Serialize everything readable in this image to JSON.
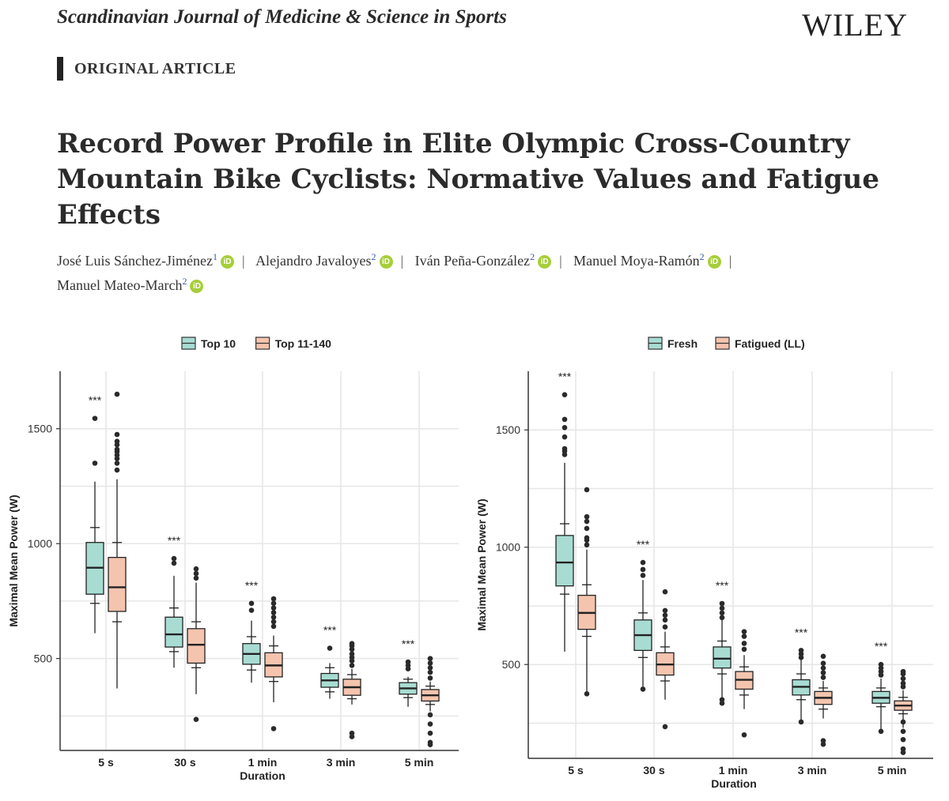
{
  "header": {
    "journal": "Scandinavian Journal of Medicine & Science in Sports",
    "publisher": "WILEY",
    "article_type": "ORIGINAL ARTICLE"
  },
  "title": "Record Power Profile in Elite Olympic Cross-Country Mountain Bike Cyclists: Normative Values and Fatigue Effects",
  "authors": [
    {
      "name": "José Luis Sánchez-Jiménez",
      "aff": "1"
    },
    {
      "name": "Alejandro Javaloyes",
      "aff": "2"
    },
    {
      "name": "Iván Peña-González",
      "aff": "2"
    },
    {
      "name": "Manuel Moya-Ramón",
      "aff": "2"
    },
    {
      "name": "Manuel Mateo-March",
      "aff": "2"
    }
  ],
  "orcid_label": "iD",
  "separator": "|",
  "colors": {
    "teal": "#a8dcd3",
    "salmon": "#f4c4ae",
    "grid": "#e6e6e6",
    "ink": "#222222"
  },
  "chart_data": [
    {
      "type": "box",
      "xlabel": "Duration",
      "ylabel": "Maximal Mean Power (W)",
      "categories": [
        "5 s",
        "30 s",
        "1 min",
        "3 min",
        "5 min"
      ],
      "yticks": [
        500,
        1000,
        1500
      ],
      "ylim": [
        100,
        1750
      ],
      "grid": true,
      "legend_position": "top",
      "annotations": [
        "***",
        "***",
        "***",
        "***",
        "***"
      ],
      "series": [
        {
          "name": "Top 10",
          "color": "#a8dcd3",
          "boxes": [
            {
              "whisker_low": 610,
              "q1": 780,
              "median": 895,
              "q3": 1005,
              "whisker_high": 1270,
              "ci": [
                740,
                1070
              ],
              "outliers": [
                1350,
                1545
              ]
            },
            {
              "whisker_low": 460,
              "q1": 550,
              "median": 605,
              "q3": 680,
              "whisker_high": 860,
              "ci": [
                530,
                720
              ],
              "outliers": [
                915,
                935
              ]
            },
            {
              "whisker_low": 395,
              "q1": 475,
              "median": 520,
              "q3": 565,
              "whisker_high": 665,
              "ci": [
                450,
                595
              ],
              "outliers": [
                710,
                740
              ]
            },
            {
              "whisker_low": 325,
              "q1": 375,
              "median": 405,
              "q3": 435,
              "whisker_high": 480,
              "ci": [
                355,
                460
              ],
              "outliers": [
                545
              ]
            },
            {
              "whisker_low": 290,
              "q1": 345,
              "median": 370,
              "q3": 395,
              "whisker_high": 420,
              "ci": [
                330,
                410
              ],
              "outliers": [
                455,
                470,
                485
              ]
            }
          ]
        },
        {
          "name": "Top 11-140",
          "color": "#f4c4ae",
          "boxes": [
            {
              "whisker_low": 370,
              "q1": 705,
              "median": 810,
              "q3": 940,
              "whisker_high": 1280,
              "ci": [
                660,
                1005
              ],
              "outliers": [
                1320,
                1350,
                1370,
                1385,
                1400,
                1410,
                1430,
                1445,
                1475,
                1650
              ]
            },
            {
              "whisker_low": 345,
              "q1": 480,
              "median": 560,
              "q3": 630,
              "whisker_high": 830,
              "ci": [
                460,
                660
              ],
              "outliers": [
                235,
                850,
                870,
                890
              ]
            },
            {
              "whisker_low": 310,
              "q1": 420,
              "median": 470,
              "q3": 525,
              "whisker_high": 600,
              "ci": [
                400,
                555
              ],
              "outliers": [
                195,
                640,
                660,
                680,
                700,
                720,
                740,
                760
              ]
            },
            {
              "whisker_low": 300,
              "q1": 340,
              "median": 375,
              "q3": 410,
              "whisker_high": 455,
              "ci": [
                325,
                430
              ],
              "outliers": [
                160,
                175,
                470,
                490,
                505,
                520,
                540,
                555,
                565
              ]
            },
            {
              "whisker_low": 270,
              "q1": 315,
              "median": 340,
              "q3": 365,
              "whisker_high": 400,
              "ci": [
                300,
                380
              ],
              "outliers": [
                125,
                135,
                175,
                215,
                255,
                415,
                440,
                460,
                480,
                500
              ]
            }
          ]
        }
      ]
    },
    {
      "type": "box",
      "xlabel": "Duration",
      "ylabel": "Maximal Mean Power (W)",
      "categories": [
        "5 s",
        "30 s",
        "1 min",
        "3 min",
        "5 min"
      ],
      "yticks": [
        500,
        1000,
        1500
      ],
      "ylim": [
        100,
        1750
      ],
      "grid": true,
      "legend_position": "top",
      "annotations": [
        "***",
        "***",
        "***",
        "***",
        "***"
      ],
      "series": [
        {
          "name": "Fresh",
          "color": "#a8dcd3",
          "boxes": [
            {
              "whisker_low": 555,
              "q1": 835,
              "median": 935,
              "q3": 1050,
              "whisker_high": 1360,
              "ci": [
                800,
                1100
              ],
              "outliers": [
                1395,
                1410,
                1420,
                1470,
                1510,
                1545,
                1650
              ]
            },
            {
              "whisker_low": 400,
              "q1": 560,
              "median": 625,
              "q3": 690,
              "whisker_high": 860,
              "ci": [
                530,
                720
              ],
              "outliers": [
                395,
                880,
                905,
                935
              ]
            },
            {
              "whisker_low": 340,
              "q1": 485,
              "median": 525,
              "q3": 575,
              "whisker_high": 690,
              "ci": [
                460,
                600
              ],
              "outliers": [
                335,
                350,
                700,
                720,
                740,
                760
              ]
            },
            {
              "whisker_low": 260,
              "q1": 370,
              "median": 405,
              "q3": 435,
              "whisker_high": 520,
              "ci": [
                350,
                460
              ],
              "outliers": [
                255,
                530,
                545,
                560
              ]
            },
            {
              "whisker_low": 220,
              "q1": 335,
              "median": 358,
              "q3": 385,
              "whisker_high": 440,
              "ci": [
                320,
                400
              ],
              "outliers": [
                215,
                455,
                470,
                485,
                500
              ]
            }
          ]
        },
        {
          "name": "Fatigued (LL)",
          "color": "#f4c4ae",
          "boxes": [
            {
              "whisker_low": 375,
              "q1": 650,
              "median": 720,
              "q3": 795,
              "whisker_high": 990,
              "ci": [
                620,
                840
              ],
              "outliers": [
                375,
                1010,
                1030,
                1040,
                1080,
                1110,
                1130,
                1245
              ]
            },
            {
              "whisker_low": 350,
              "q1": 455,
              "median": 500,
              "q3": 550,
              "whisker_high": 640,
              "ci": [
                430,
                575
              ],
              "outliers": [
                235,
                660,
                690,
                710,
                730,
                810
              ]
            },
            {
              "whisker_low": 310,
              "q1": 395,
              "median": 435,
              "q3": 470,
              "whisker_high": 540,
              "ci": [
                370,
                490
              ],
              "outliers": [
                200,
                565,
                590,
                620,
                640
              ]
            },
            {
              "whisker_low": 270,
              "q1": 330,
              "median": 358,
              "q3": 385,
              "whisker_high": 430,
              "ci": [
                310,
                400
              ],
              "outliers": [
                160,
                175,
                445,
                465,
                485,
                505,
                535
              ]
            },
            {
              "whisker_low": 230,
              "q1": 305,
              "median": 325,
              "q3": 345,
              "whisker_high": 390,
              "ci": [
                290,
                360
              ],
              "outliers": [
                125,
                140,
                180,
                215,
                255,
                405,
                420,
                440,
                460,
                470
              ]
            }
          ]
        }
      ]
    }
  ]
}
